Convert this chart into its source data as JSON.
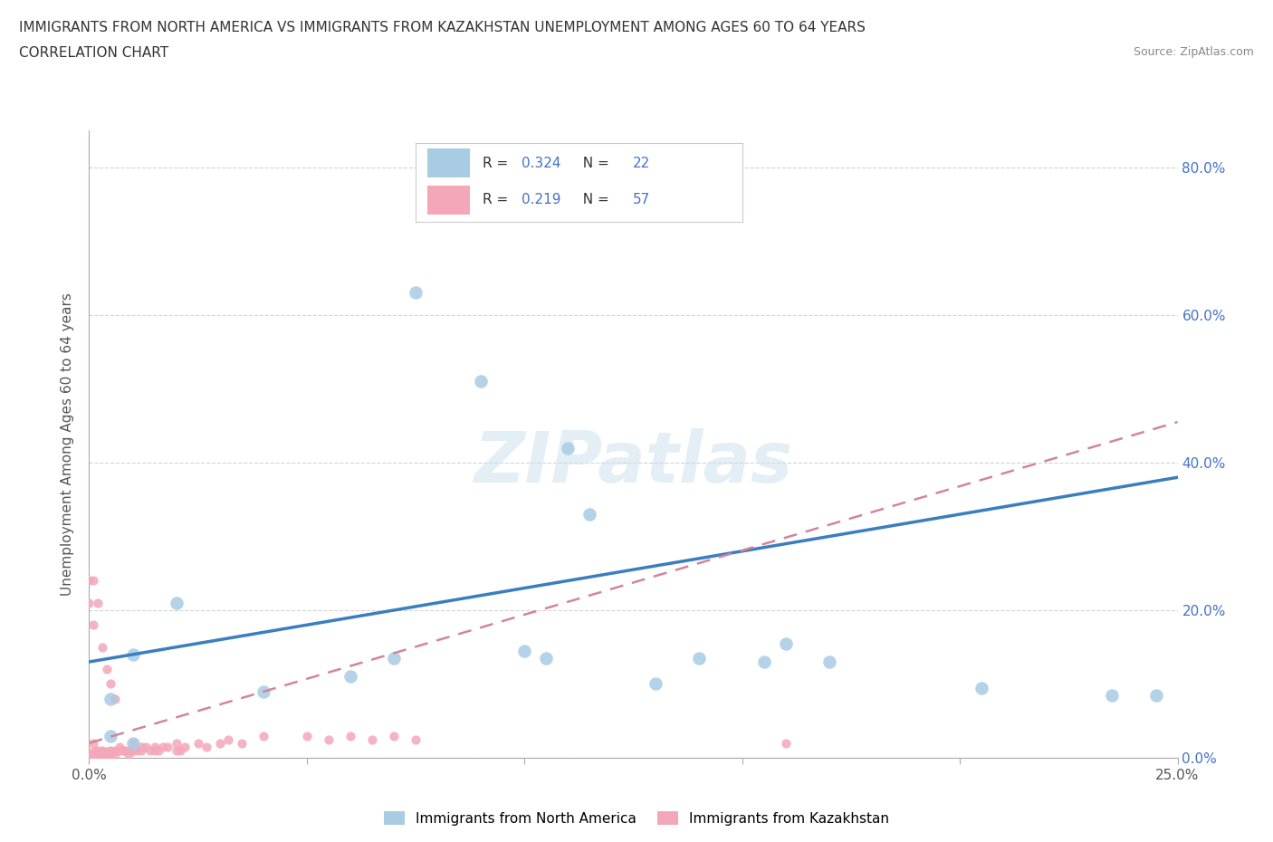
{
  "title_line1": "IMMIGRANTS FROM NORTH AMERICA VS IMMIGRANTS FROM KAZAKHSTAN UNEMPLOYMENT AMONG AGES 60 TO 64 YEARS",
  "title_line2": "CORRELATION CHART",
  "source": "Source: ZipAtlas.com",
  "ylabel": "Unemployment Among Ages 60 to 64 years",
  "xlim": [
    0,
    0.25
  ],
  "ylim": [
    0,
    0.85
  ],
  "blue_R": 0.324,
  "blue_N": 22,
  "pink_R": 0.219,
  "pink_N": 57,
  "blue_color": "#a8cce4",
  "pink_color": "#f4a7b9",
  "blue_line_color": "#3a7ebf",
  "pink_line_color": "#d4849a",
  "watermark": "ZIPatlas",
  "blue_scatter_x": [
    0.005,
    0.005,
    0.01,
    0.01,
    0.02,
    0.04,
    0.06,
    0.07,
    0.075,
    0.09,
    0.1,
    0.105,
    0.11,
    0.115,
    0.13,
    0.14,
    0.155,
    0.16,
    0.17,
    0.205,
    0.235,
    0.245
  ],
  "blue_scatter_y": [
    0.03,
    0.08,
    0.02,
    0.14,
    0.21,
    0.09,
    0.11,
    0.135,
    0.63,
    0.51,
    0.145,
    0.135,
    0.42,
    0.33,
    0.1,
    0.135,
    0.13,
    0.155,
    0.13,
    0.095,
    0.085,
    0.085
  ],
  "pink_scatter_x": [
    0.0,
    0.001,
    0.001,
    0.001,
    0.001,
    0.002,
    0.002,
    0.002,
    0.003,
    0.003,
    0.003,
    0.003,
    0.004,
    0.004,
    0.004,
    0.005,
    0.005,
    0.005,
    0.006,
    0.006,
    0.007,
    0.007,
    0.008,
    0.008,
    0.009,
    0.009,
    0.01,
    0.01,
    0.01,
    0.01,
    0.011,
    0.012,
    0.012,
    0.013,
    0.014,
    0.015,
    0.015,
    0.016,
    0.017,
    0.018,
    0.02,
    0.02,
    0.021,
    0.022,
    0.025,
    0.027,
    0.03,
    0.032,
    0.035,
    0.04,
    0.05,
    0.055,
    0.06,
    0.065,
    0.07,
    0.075,
    0.16
  ],
  "pink_scatter_y": [
    0.005,
    0.005,
    0.005,
    0.008,
    0.02,
    0.005,
    0.007,
    0.01,
    0.005,
    0.005,
    0.008,
    0.01,
    0.005,
    0.005,
    0.008,
    0.005,
    0.008,
    0.01,
    0.005,
    0.01,
    0.01,
    0.015,
    0.01,
    0.01,
    0.005,
    0.01,
    0.01,
    0.01,
    0.015,
    0.02,
    0.01,
    0.01,
    0.015,
    0.015,
    0.01,
    0.01,
    0.015,
    0.01,
    0.015,
    0.015,
    0.01,
    0.02,
    0.01,
    0.015,
    0.02,
    0.015,
    0.02,
    0.025,
    0.02,
    0.03,
    0.03,
    0.025,
    0.03,
    0.025,
    0.03,
    0.025,
    0.02
  ],
  "pink_extra_x": [
    0.0,
    0.0,
    0.001,
    0.001,
    0.002,
    0.003,
    0.004,
    0.005,
    0.006
  ],
  "pink_extra_y": [
    0.21,
    0.24,
    0.18,
    0.24,
    0.21,
    0.15,
    0.12,
    0.1,
    0.08
  ],
  "background_color": "#ffffff",
  "grid_color": "#d0d0d0",
  "blue_line_x": [
    0.0,
    0.25
  ],
  "blue_line_y": [
    0.13,
    0.38
  ],
  "pink_line_x": [
    0.0,
    0.25
  ],
  "pink_line_y": [
    0.02,
    0.455
  ]
}
